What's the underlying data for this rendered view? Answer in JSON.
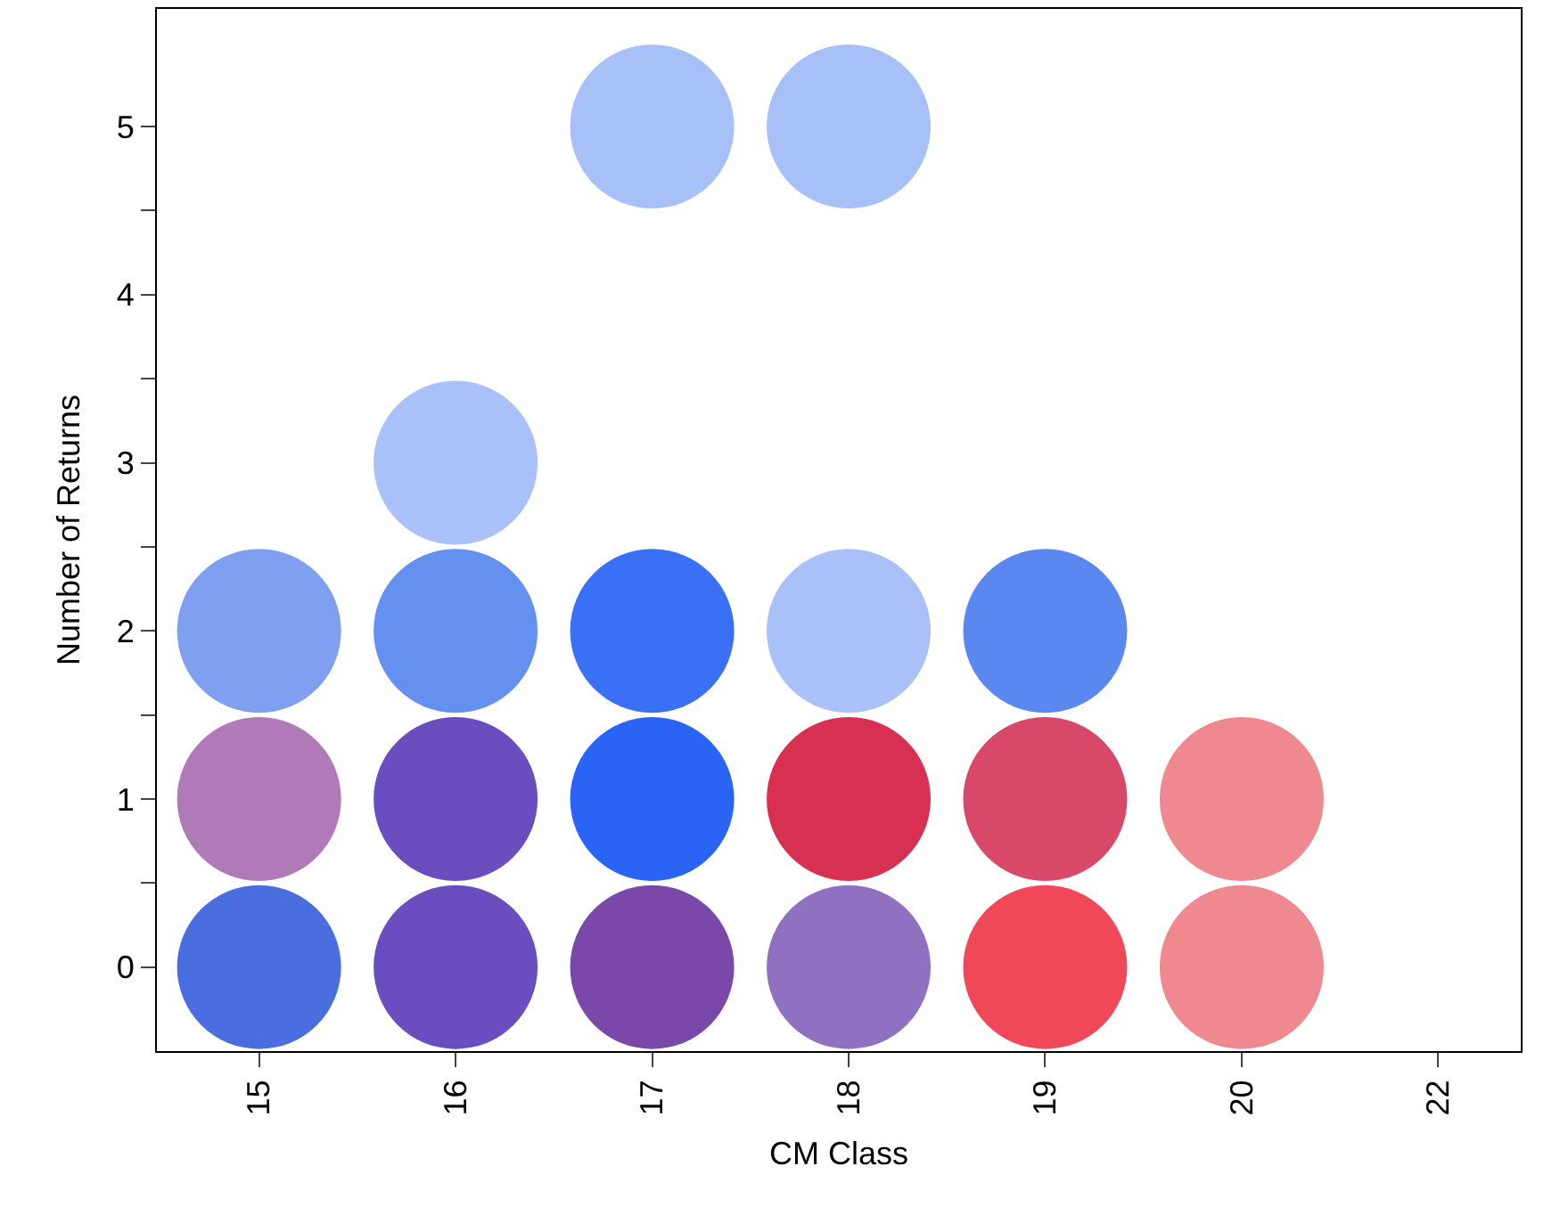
{
  "chart_data": {
    "type": "scatter",
    "xlabel": "CM Class",
    "ylabel": "Number of Returns",
    "categories": [
      "15",
      "16",
      "17",
      "18",
      "19",
      "20",
      "22"
    ],
    "series": [
      {
        "x": [
          "15",
          "15",
          "15",
          "16",
          "16",
          "16",
          "16",
          "17",
          "17",
          "17",
          "17",
          "18",
          "18",
          "18",
          "18",
          "19",
          "19",
          "19",
          "20",
          "20"
        ],
        "values": [
          0,
          1,
          2,
          0,
          1,
          2,
          3,
          0,
          1,
          2,
          5,
          0,
          1,
          2,
          5,
          0,
          1,
          2,
          0,
          1
        ],
        "colors": [
          "#4a6ee0",
          "#b07ab8",
          "#7fa0f0",
          "#6a4ec0",
          "#6a4ec0",
          "#6490f0",
          "#aac0f8",
          "#7a48a8",
          "#2a64f5",
          "#3a70f5",
          "#a8c0f8",
          "#9070c0",
          "#d83050",
          "#aac0f8",
          "#a8c0f8",
          "#f04858",
          "#d84868",
          "#5a88f0",
          "#f08890",
          "#f08890"
        ]
      }
    ],
    "marker": "circle",
    "ylim": [
      -0.5,
      5.7
    ],
    "yticks": [
      0,
      {
        "value": 0.5,
        "label": null
      },
      1,
      {
        "value": 1.5,
        "label": null
      },
      2,
      {
        "value": 2.5,
        "label": null
      },
      3,
      {
        "value": 3.5,
        "label": null
      },
      4,
      {
        "value": 4.5,
        "label": null
      },
      5
    ]
  }
}
